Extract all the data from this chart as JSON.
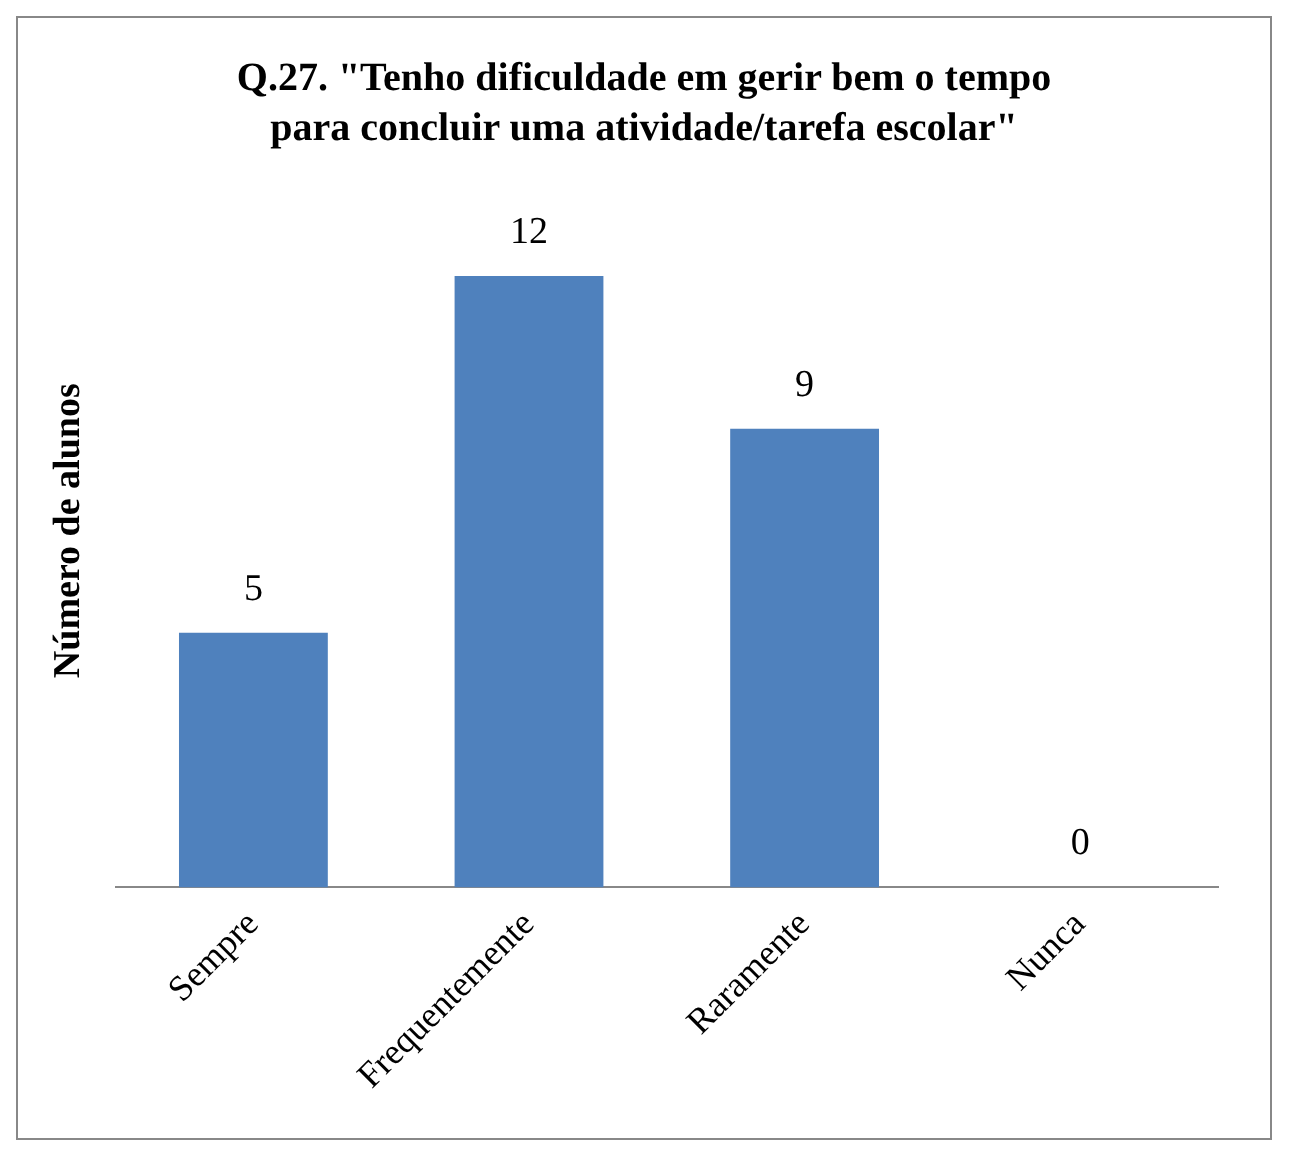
{
  "chart_data": {
    "type": "bar",
    "title": "Q.27. \"Tenho dificuldade em gerir bem o tempo para concluir uma atividade/tarefa escolar\"",
    "ylabel": "Número de alunos",
    "categories": [
      "Sempre",
      "Frequentemente",
      "Raramente",
      "Nunca"
    ],
    "values": [
      5,
      12,
      9,
      0
    ],
    "color": "#4f81bd",
    "data_labels": true,
    "grid": false,
    "legend": false
  }
}
